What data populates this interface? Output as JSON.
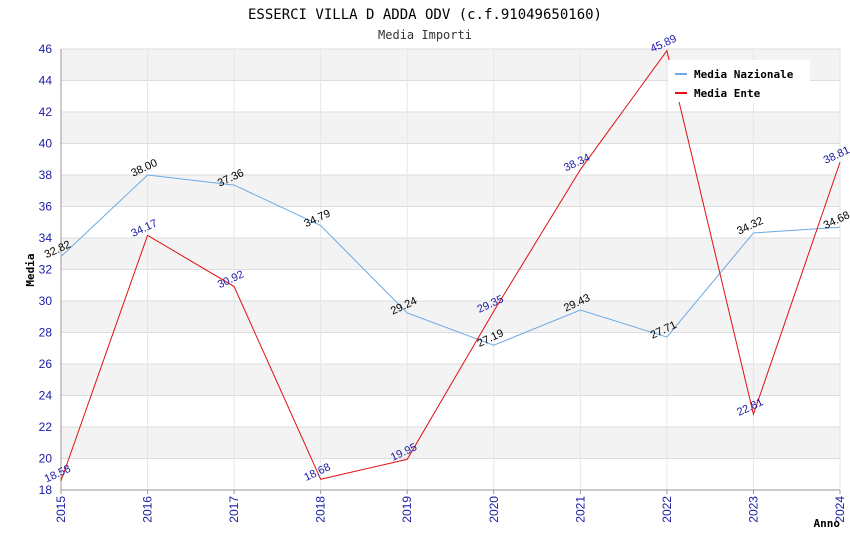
{
  "chart_data": {
    "type": "line",
    "title": "ESSERCI VILLA D ADDA ODV (c.f.91049650160)",
    "subtitle": "Media Importi",
    "xlabel": "Anno",
    "ylabel": "Media",
    "x": [
      "2015",
      "2016",
      "2017",
      "2018",
      "2019",
      "2020",
      "2021",
      "2022",
      "2023",
      "2024"
    ],
    "ylim": [
      18,
      46
    ],
    "yticks": [
      18,
      20,
      22,
      24,
      26,
      28,
      30,
      32,
      34,
      36,
      38,
      40,
      42,
      44,
      46
    ],
    "grid": true,
    "legend_position": "top-right",
    "series": [
      {
        "name": "Media Nazionale",
        "color": "#6aaae6",
        "values": [
          32.82,
          38.0,
          37.36,
          34.79,
          29.24,
          27.19,
          29.43,
          27.71,
          34.32,
          34.68
        ],
        "labels": [
          "32.82",
          "38.00",
          "37.36",
          "34.79",
          "29.24",
          "27.19",
          "29.43",
          "27.71",
          "34.32",
          "34.68"
        ]
      },
      {
        "name": "Media Ente",
        "color": "#e01010",
        "values": [
          18.58,
          34.17,
          30.92,
          18.68,
          19.95,
          29.35,
          38.34,
          45.89,
          22.81,
          38.81
        ],
        "labels": [
          "18.58",
          "34.17",
          "30.92",
          "18.68",
          "19.95",
          "29.35",
          "38.34",
          "45.89",
          "22.81",
          "38.81"
        ]
      }
    ]
  }
}
